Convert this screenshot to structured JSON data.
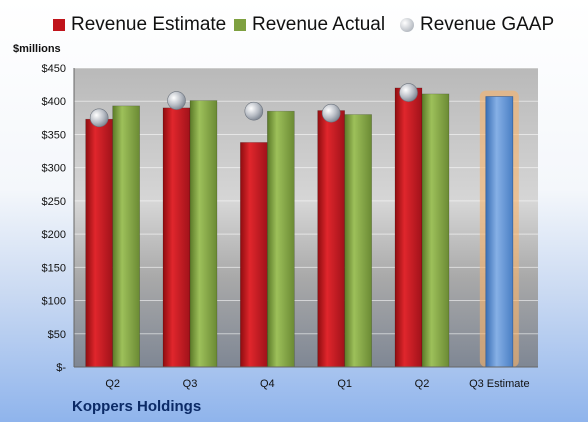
{
  "chart_data": {
    "type": "bar",
    "categories": [
      "Q2",
      "Q3",
      "Q4",
      "Q1",
      "Q2",
      "Q3 Estimate"
    ],
    "series": [
      {
        "name": "Revenue Estimate",
        "values": [
          373,
          390,
          338,
          386,
          420,
          null
        ],
        "color": "#c0141b"
      },
      {
        "name": "Revenue Actual",
        "values": [
          393,
          401,
          385,
          380,
          411,
          null
        ],
        "color": "#7ea040"
      },
      {
        "name": "Revenue GAAP",
        "values": [
          375,
          401,
          385,
          382,
          413,
          null
        ],
        "color": "#b8bfc8"
      }
    ],
    "forecast": {
      "category": "Q3 Estimate",
      "value": 407,
      "color": "#5b8fd2",
      "highlight": "#f6b26b"
    },
    "ylabel": "$millions",
    "ylim": [
      0,
      450
    ],
    "yticks": [
      0,
      50,
      100,
      150,
      200,
      250,
      300,
      350,
      400,
      450
    ],
    "ytick_labels": [
      "$-",
      "$50",
      "$100",
      "$150",
      "$200",
      "$250",
      "$300",
      "$350",
      "$400",
      "$450"
    ],
    "grid": true,
    "legend_position": "top",
    "footer": "Koppers Holdings"
  }
}
